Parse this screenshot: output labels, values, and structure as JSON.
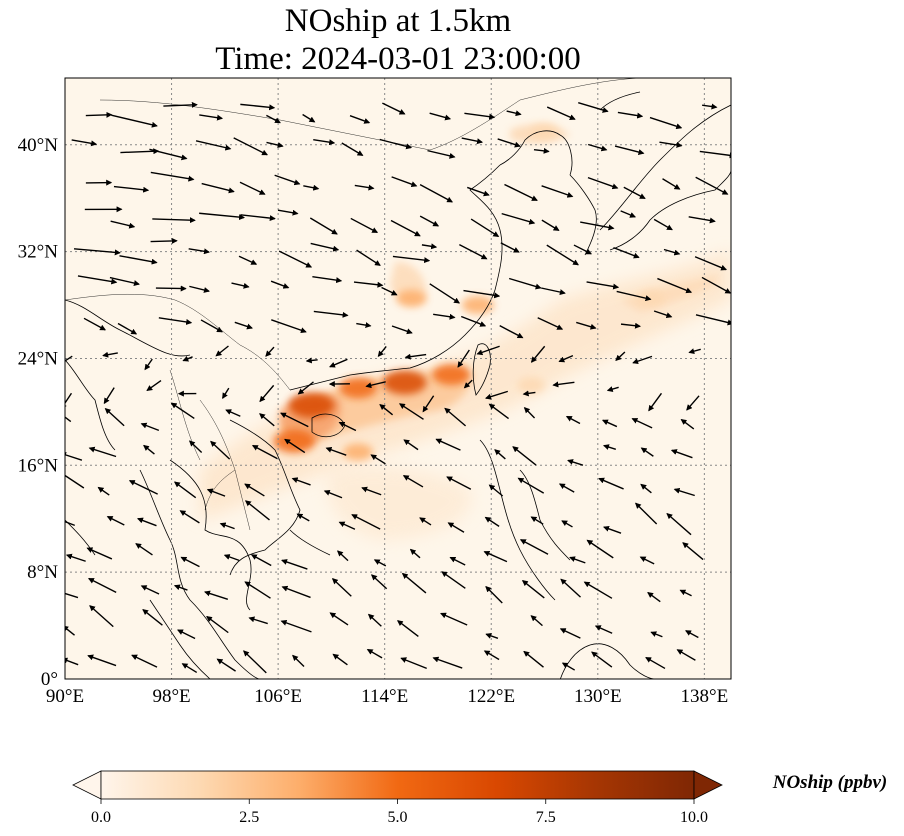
{
  "title": {
    "line1": "NOship at 1.5km",
    "line2": "Time: 2024-03-01 23:00:00"
  },
  "map": {
    "lon_range": [
      90,
      140
    ],
    "lat_range": [
      0,
      45
    ],
    "lon_ticks": [
      {
        "value": 90,
        "label": "90°E"
      },
      {
        "value": 98,
        "label": "98°E"
      },
      {
        "value": 106,
        "label": "106°E"
      },
      {
        "value": 114,
        "label": "114°E"
      },
      {
        "value": 122,
        "label": "122°E"
      },
      {
        "value": 130,
        "label": "130°E"
      },
      {
        "value": 138,
        "label": "138°E"
      }
    ],
    "lat_ticks": [
      {
        "value": 0,
        "label": "0°"
      },
      {
        "value": 8,
        "label": "8°N"
      },
      {
        "value": 16,
        "label": "16°N"
      },
      {
        "value": 24,
        "label": "24°N"
      },
      {
        "value": 32,
        "label": "32°N"
      },
      {
        "value": 40,
        "label": "40°N"
      }
    ],
    "gridlines": true,
    "background_color": "#fef6ea",
    "coast_color": "#000000"
  },
  "colorbar": {
    "label": "NOship (ppbv)",
    "min": 0,
    "max": 10,
    "extend": "both",
    "ticks": [
      {
        "value": 0,
        "label": "0.0"
      },
      {
        "value": 2.5,
        "label": "2.5"
      },
      {
        "value": 5,
        "label": "5.0"
      },
      {
        "value": 7.5,
        "label": "7.5"
      },
      {
        "value": 10,
        "label": "10.0"
      }
    ],
    "colors": [
      "#fff5eb",
      "#fdd9b2",
      "#fdae6b",
      "#f16913",
      "#d94801",
      "#a63603",
      "#7f2704"
    ]
  },
  "chart_data": {
    "type": "heatmap",
    "description_values": "NOship concentration plume along South China coast and shipping lanes",
    "hotspots": [
      {
        "lon": 108.5,
        "lat": 20.5,
        "value": 6.5
      },
      {
        "lon": 112.0,
        "lat": 21.8,
        "value": 4.5
      },
      {
        "lon": 115.5,
        "lat": 22.2,
        "value": 6.0
      },
      {
        "lon": 119.0,
        "lat": 22.8,
        "value": 4.5
      },
      {
        "lon": 107.2,
        "lat": 17.8,
        "value": 5.5
      },
      {
        "lon": 121.0,
        "lat": 28.0,
        "value": 3.0
      },
      {
        "lon": 116.0,
        "lat": 28.5,
        "value": 2.5
      },
      {
        "lon": 126.0,
        "lat": 41.0,
        "value": 2.0
      },
      {
        "lon": 134.0,
        "lat": 28.5,
        "value": 2.0
      },
      {
        "lon": 112.0,
        "lat": 17.0,
        "value": 2.5
      },
      {
        "lon": 125.0,
        "lat": 22.0,
        "value": 2.0
      }
    ]
  }
}
